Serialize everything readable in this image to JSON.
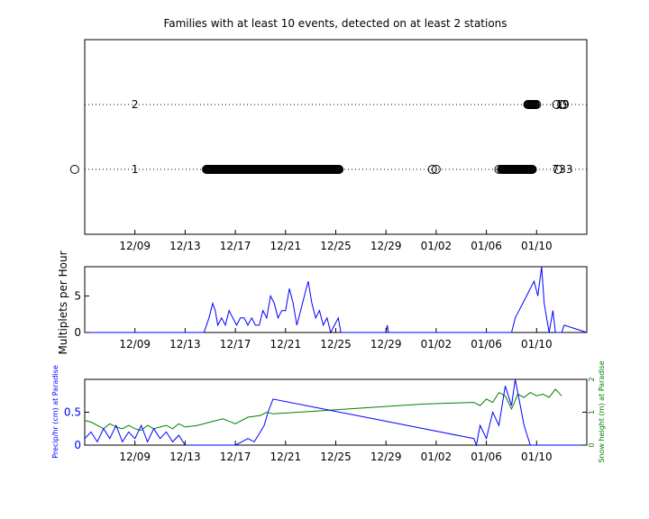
{
  "chart_data": [
    {
      "type": "scatter",
      "title": "Families with at least 10 events, detected on at least 2 stations",
      "xticks": [
        "12/09",
        "12/13",
        "12/17",
        "12/21",
        "12/25",
        "12/29",
        "01/02",
        "01/06",
        "01/10"
      ],
      "xlim": [
        -4,
        36
      ],
      "ylim": [
        0,
        3
      ],
      "families": [
        {
          "label": "1",
          "count": "733",
          "y": 1,
          "dense_ranges": [
            [
              5.7,
              16.3
            ],
            [
              29.2,
              31.7
            ]
          ],
          "points": [
            -4.8,
            23.7,
            24.0,
            29.0,
            29.5,
            33.7
          ]
        },
        {
          "label": "2",
          "count": "19",
          "y": 2,
          "dense_ranges": [
            [
              31.3,
              31.9
            ]
          ],
          "points": [
            32.0,
            33.6,
            34.0,
            34.2
          ]
        }
      ],
      "grid": "dotted horizontal at family rows"
    },
    {
      "type": "line",
      "ylabel": "Multiplets per Hour",
      "yticks": [
        "0",
        "5"
      ],
      "ylim": [
        0,
        9
      ],
      "xticks": [
        "12/09",
        "12/13",
        "12/17",
        "12/21",
        "12/25",
        "12/29",
        "01/02",
        "01/06",
        "01/10"
      ],
      "color": "#0000ff",
      "series": [
        {
          "x": [
            -4,
            5.5,
            5.7,
            5.9,
            6.2,
            6.4,
            6.6,
            6.9,
            7.2,
            7.5,
            7.8,
            8.1,
            8.4,
            8.7,
            9.0,
            9.3,
            9.6,
            9.9,
            10.2,
            10.5,
            10.8,
            11.1,
            11.4,
            11.7,
            12.0,
            12.3,
            12.6,
            12.9,
            13.2,
            13.5,
            13.8,
            14.1,
            14.4,
            14.7,
            15.0,
            15.3,
            15.6,
            15.9,
            16.2,
            16.4,
            16.6,
            20.0,
            20.1,
            20.2,
            30.0,
            30.3,
            30.6,
            30.9,
            31.2,
            31.5,
            31.8,
            32.1,
            32.4,
            32.6,
            32.8,
            33.0,
            33.3,
            33.5,
            34.0,
            34.2,
            36
          ],
          "values": [
            0,
            0,
            1,
            2,
            4,
            3,
            1,
            2,
            1,
            3,
            2,
            1,
            2,
            2,
            1,
            2,
            1,
            1,
            3,
            2,
            5,
            4,
            2,
            3,
            3,
            6,
            4,
            1,
            3,
            5,
            7,
            4,
            2,
            3,
            1,
            2,
            0,
            1,
            2,
            0,
            0,
            0,
            1,
            0,
            0,
            2,
            3,
            4,
            5,
            6,
            7,
            5,
            9,
            4,
            2,
            0,
            3,
            0,
            0,
            1,
            0
          ]
        }
      ]
    },
    {
      "type": "line",
      "ylabel": "Precip/hr (cm) at Paradise",
      "y2label": "Snow height (m) at Paradise",
      "yticks": [
        "0",
        "0.5"
      ],
      "y2ticks": [
        "0",
        "1",
        "2"
      ],
      "ylim": [
        0,
        1
      ],
      "y2lim": [
        0,
        2
      ],
      "xticks": [
        "12/09",
        "12/13",
        "12/17",
        "12/21",
        "12/25",
        "12/29",
        "01/02",
        "01/06",
        "01/10"
      ],
      "colors": {
        "precip": "#0000ff",
        "snow": "#007f00"
      },
      "series": [
        {
          "name": "precip",
          "x": [
            -4,
            -3.5,
            -3.0,
            -2.5,
            -2.0,
            -1.5,
            -1.0,
            -0.5,
            0,
            0.5,
            1.0,
            1.5,
            2.0,
            2.5,
            3.0,
            3.5,
            4.0,
            8.0,
            8.5,
            9.0,
            9.5,
            10.0,
            10.3,
            10.6,
            11.0,
            15.0,
            19.0,
            23.0,
            27.0,
            27.2,
            27.5,
            28.0,
            28.5,
            29.0,
            29.5,
            30.0,
            30.3,
            31.0,
            31.5,
            36
          ],
          "values": [
            0.1,
            0.2,
            0.05,
            0.25,
            0.1,
            0.3,
            0.05,
            0.2,
            0.1,
            0.3,
            0.05,
            0.25,
            0.1,
            0.2,
            0.05,
            0.15,
            0,
            0,
            0.05,
            0.1,
            0.05,
            0.2,
            0.3,
            0.5,
            0.7,
            0.55,
            0.4,
            0.25,
            0.1,
            0,
            0.3,
            0.1,
            0.5,
            0.3,
            0.9,
            0.6,
            1.0,
            0.3,
            0,
            0
          ]
        },
        {
          "name": "snow",
          "x": [
            -4,
            -3.5,
            -3,
            -2.5,
            -2,
            -1.5,
            -1,
            -0.5,
            0,
            0.5,
            1,
            1.5,
            2,
            2.5,
            3,
            3.5,
            4,
            5,
            6,
            7,
            8,
            9,
            10,
            10.5,
            11,
            15,
            19,
            23,
            27,
            27.5,
            28,
            28.5,
            29,
            29.5,
            30,
            30.5,
            31,
            31.5,
            32,
            32.5,
            33,
            33.5,
            34
          ],
          "values": [
            0.75,
            0.7,
            0.6,
            0.5,
            0.65,
            0.55,
            0.5,
            0.6,
            0.5,
            0.45,
            0.6,
            0.5,
            0.55,
            0.6,
            0.5,
            0.65,
            0.55,
            0.6,
            0.7,
            0.8,
            0.65,
            0.85,
            0.9,
            1.0,
            0.95,
            1.05,
            1.15,
            1.25,
            1.3,
            1.2,
            1.4,
            1.3,
            1.6,
            1.5,
            1.1,
            1.55,
            1.45,
            1.6,
            1.5,
            1.55,
            1.45,
            1.7,
            1.5
          ]
        }
      ]
    }
  ]
}
